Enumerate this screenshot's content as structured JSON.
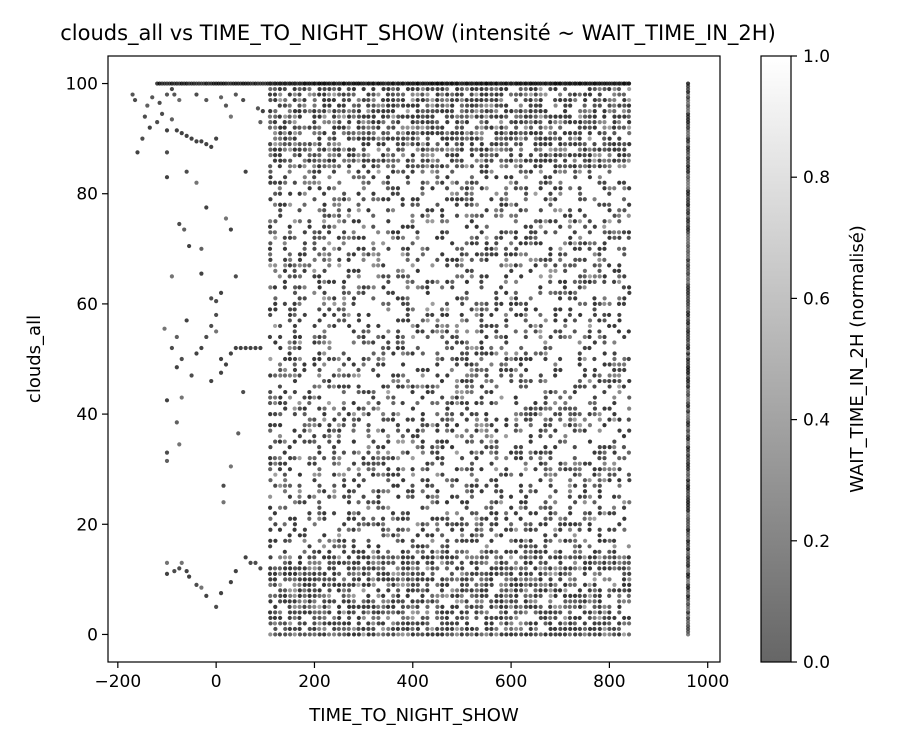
{
  "chart_data": {
    "type": "scatter",
    "title": "clouds_all vs TIME_TO_NIGHT_SHOW (intensité ~ WAIT_TIME_IN_2H)",
    "xlabel": "TIME_TO_NIGHT_SHOW",
    "ylabel": "clouds_all",
    "xlim": [
      -220,
      1025
    ],
    "ylim": [
      -5,
      105
    ],
    "xticks": [
      -200,
      0,
      200,
      400,
      600,
      800,
      1000
    ],
    "xtick_labels": [
      "−200",
      "0",
      "200",
      "400",
      "600",
      "800",
      "1000"
    ],
    "yticks": [
      0,
      20,
      40,
      60,
      80,
      100
    ],
    "ytick_labels": [
      "0",
      "20",
      "40",
      "60",
      "80",
      "100"
    ],
    "grid": false,
    "colorbar": {
      "label": "WAIT_TIME_IN_2H (normalisé)",
      "range": [
        0,
        1
      ],
      "ticks": [
        0.0,
        0.2,
        0.4,
        0.6,
        0.8,
        1.0
      ],
      "tick_labels": [
        "0.0",
        "0.2",
        "0.4",
        "0.6",
        "0.8",
        "1.0"
      ],
      "colormap": "gray",
      "alpha": 0.6
    },
    "sparse_points": [
      {
        "x": -170,
        "y": 98,
        "c": 0.15
      },
      {
        "x": -165,
        "y": 97,
        "c": 0.1
      },
      {
        "x": -160,
        "y": 87.5,
        "c": 0.05
      },
      {
        "x": -150,
        "y": 90,
        "c": 0.1
      },
      {
        "x": -145,
        "y": 94,
        "c": 0.1
      },
      {
        "x": -140,
        "y": 96,
        "c": 0.2
      },
      {
        "x": -135,
        "y": 92,
        "c": 0.05
      },
      {
        "x": -130,
        "y": 97.5,
        "c": 0.15
      },
      {
        "x": -120,
        "y": 93,
        "c": 0.1
      },
      {
        "x": -115,
        "y": 96.5,
        "c": 0.1
      },
      {
        "x": -110,
        "y": 94.5,
        "c": 0.1
      },
      {
        "x": -100,
        "y": 91.5,
        "c": 0.05
      },
      {
        "x": -100,
        "y": 87.5,
        "c": 0.1
      },
      {
        "x": -100,
        "y": 98,
        "c": 0.15
      },
      {
        "x": -90,
        "y": 99,
        "c": 0.1
      },
      {
        "x": -90,
        "y": 93.5,
        "c": 0.2
      },
      {
        "x": -85,
        "y": 98,
        "c": 0.15
      },
      {
        "x": -80,
        "y": 91.5,
        "c": 0.05
      },
      {
        "x": -75,
        "y": 97,
        "c": 0.25
      },
      {
        "x": -70,
        "y": 91,
        "c": 0.05
      },
      {
        "x": -60,
        "y": 90.5,
        "c": 0.05
      },
      {
        "x": -50,
        "y": 90,
        "c": 0.05
      },
      {
        "x": -40,
        "y": 89.5,
        "c": 0.05
      },
      {
        "x": -30,
        "y": 89.5,
        "c": 0.05
      },
      {
        "x": -20,
        "y": 89,
        "c": 0.05
      },
      {
        "x": -10,
        "y": 88.5,
        "c": 0.05
      },
      {
        "x": -60,
        "y": 84,
        "c": 0.1
      },
      {
        "x": -40,
        "y": 98,
        "c": 0.1
      },
      {
        "x": -20,
        "y": 97,
        "c": 0.15
      },
      {
        "x": 0,
        "y": 90,
        "c": 0.05
      },
      {
        "x": 10,
        "y": 97.5,
        "c": 0.2
      },
      {
        "x": 20,
        "y": 96,
        "c": 0.15
      },
      {
        "x": 30,
        "y": 94,
        "c": 0.3
      },
      {
        "x": 40,
        "y": 98,
        "c": 0.15
      },
      {
        "x": 55,
        "y": 97,
        "c": 0.1
      },
      {
        "x": 60,
        "y": 84,
        "c": 0.05
      },
      {
        "x": 85,
        "y": 95.5,
        "c": 0.15
      },
      {
        "x": 90,
        "y": 93,
        "c": 0.2
      },
      {
        "x": 95,
        "y": 95,
        "c": 0.05
      },
      {
        "x": -100,
        "y": 83,
        "c": 0.05
      },
      {
        "x": -90,
        "y": 65,
        "c": 0.3
      },
      {
        "x": -75,
        "y": 74.5,
        "c": 0.1
      },
      {
        "x": -65,
        "y": 73.5,
        "c": 0.2
      },
      {
        "x": -55,
        "y": 70.5,
        "c": 0.05
      },
      {
        "x": -40,
        "y": 82,
        "c": 0.3
      },
      {
        "x": -30,
        "y": 65.5,
        "c": 0.05
      },
      {
        "x": -20,
        "y": 77.5,
        "c": 0.05
      },
      {
        "x": -10,
        "y": 61,
        "c": 0.1
      },
      {
        "x": 0,
        "y": 60.5,
        "c": 0.1
      },
      {
        "x": 0,
        "y": 55,
        "c": 0.3
      },
      {
        "x": 10,
        "y": 62,
        "c": 0.05
      },
      {
        "x": 30,
        "y": 73.5,
        "c": 0.05
      },
      {
        "x": 40,
        "y": 65,
        "c": 0.1
      },
      {
        "x": 20,
        "y": 75.5,
        "c": 0.3
      },
      {
        "x": -30,
        "y": 70,
        "c": 0.2
      },
      {
        "x": -105,
        "y": 55.5,
        "c": 0.3
      },
      {
        "x": -90,
        "y": 52,
        "c": 0.1
      },
      {
        "x": -80,
        "y": 54,
        "c": 0.2
      },
      {
        "x": -70,
        "y": 50,
        "c": 0.1
      },
      {
        "x": -60,
        "y": 57,
        "c": 0.05
      },
      {
        "x": -40,
        "y": 51,
        "c": 0.05
      },
      {
        "x": -30,
        "y": 52,
        "c": 0.05
      },
      {
        "x": -20,
        "y": 54,
        "c": 0.1
      },
      {
        "x": -10,
        "y": 56,
        "c": 0.1
      },
      {
        "x": 0,
        "y": 58,
        "c": 0.1
      },
      {
        "x": 10,
        "y": 50,
        "c": 0.05
      },
      {
        "x": 20,
        "y": 49,
        "c": 0.05
      },
      {
        "x": 30,
        "y": 51,
        "c": 0.05
      },
      {
        "x": 40,
        "y": 52,
        "c": 0.05
      },
      {
        "x": 50,
        "y": 52,
        "c": 0.05
      },
      {
        "x": 60,
        "y": 52,
        "c": 0.05
      },
      {
        "x": 70,
        "y": 52,
        "c": 0.05
      },
      {
        "x": 80,
        "y": 52,
        "c": 0.05
      },
      {
        "x": 90,
        "y": 52,
        "c": 0.05
      },
      {
        "x": -10,
        "y": 46,
        "c": 0.05
      },
      {
        "x": 10,
        "y": 47.5,
        "c": 0.05
      },
      {
        "x": -80,
        "y": 48.5,
        "c": 0.05
      },
      {
        "x": -50,
        "y": 47,
        "c": 0.1
      },
      {
        "x": -100,
        "y": 42.5,
        "c": 0.05
      },
      {
        "x": -80,
        "y": 38.5,
        "c": 0.2
      },
      {
        "x": -75,
        "y": 34.5,
        "c": 0.3
      },
      {
        "x": -100,
        "y": 33,
        "c": 0.1
      },
      {
        "x": -100,
        "y": 31.5,
        "c": 0.2
      },
      {
        "x": -70,
        "y": 43,
        "c": 0.3
      },
      {
        "x": 45,
        "y": 36.5,
        "c": 0.2
      },
      {
        "x": 30,
        "y": 30.5,
        "c": 0.3
      },
      {
        "x": 15,
        "y": 27,
        "c": 0.1
      },
      {
        "x": 15,
        "y": 24,
        "c": 0.3
      },
      {
        "x": 55,
        "y": 44,
        "c": 0.1
      },
      {
        "x": -100,
        "y": 13,
        "c": 0.3
      },
      {
        "x": -100,
        "y": 11,
        "c": 0.05
      },
      {
        "x": -85,
        "y": 11.5,
        "c": 0.1
      },
      {
        "x": -75,
        "y": 12,
        "c": 0.1
      },
      {
        "x": -70,
        "y": 13,
        "c": 0.3
      },
      {
        "x": -60,
        "y": 11.5,
        "c": 0.05
      },
      {
        "x": -55,
        "y": 10.5,
        "c": 0.05
      },
      {
        "x": -40,
        "y": 9,
        "c": 0.1
      },
      {
        "x": -30,
        "y": 8.5,
        "c": 0.3
      },
      {
        "x": -20,
        "y": 7,
        "c": 0.05
      },
      {
        "x": 0,
        "y": 5,
        "c": 0.1
      },
      {
        "x": 10,
        "y": 7.5,
        "c": 0.05
      },
      {
        "x": 30,
        "y": 9.5,
        "c": 0.05
      },
      {
        "x": 40,
        "y": 11.5,
        "c": 0.05
      },
      {
        "x": 60,
        "y": 14,
        "c": 0.05
      },
      {
        "x": 70,
        "y": 13,
        "c": 0.1
      },
      {
        "x": 80,
        "y": 13,
        "c": 0.1
      },
      {
        "x": 90,
        "y": 12,
        "c": 0.1
      }
    ],
    "dense_region": {
      "description_values": "grid of points",
      "x_start": 110,
      "x_end": 840,
      "x_step": 10,
      "y_min": 0,
      "y_max": 100,
      "color_range": [
        0.0,
        0.55
      ]
    },
    "vertical_band": {
      "x": 960,
      "y_min": 0,
      "y_max": 100,
      "y_step": 0.5,
      "color_range": [
        0.0,
        0.45
      ]
    },
    "top_band": {
      "x_start": -120,
      "x_end": 840,
      "x_step": 5,
      "y": 100,
      "color_range": [
        0.0,
        0.15
      ]
    }
  }
}
